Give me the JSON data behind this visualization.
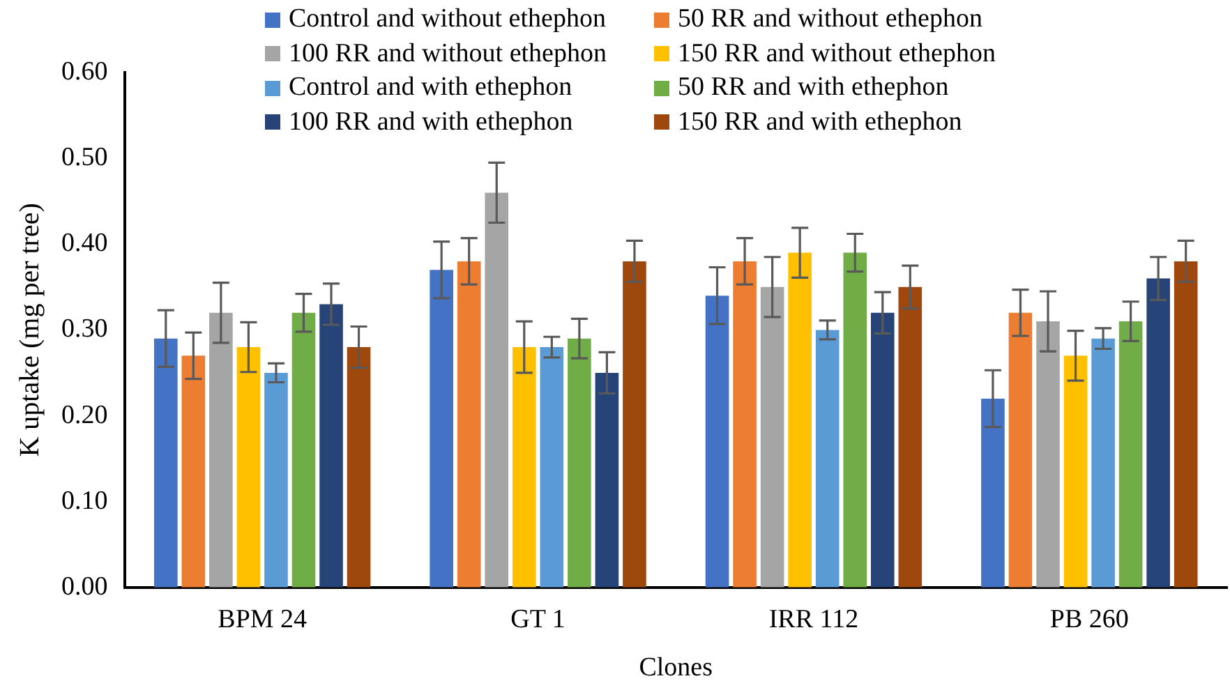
{
  "chart_data": {
    "type": "bar",
    "xlabel": "Clones",
    "ylabel": "K uptake (mg per tree)",
    "categories": [
      "BPM 24",
      "GT 1",
      "IRR 112",
      "PB 260"
    ],
    "ylim": [
      0,
      0.6
    ],
    "yticks": [
      {
        "value": 0,
        "label": "0.00"
      },
      {
        "value": 0.1,
        "label": "0.10"
      },
      {
        "value": 0.2,
        "label": "0.20"
      },
      {
        "value": 0.3,
        "label": "0.30"
      },
      {
        "value": 0.4,
        "label": "0.40"
      },
      {
        "value": 0.5,
        "label": "0.50"
      },
      {
        "value": 0.6,
        "label": "0.60"
      }
    ],
    "grid": false,
    "legend": "top right",
    "series": [
      {
        "name": "Control and without ethephon",
        "color": "#4472c4",
        "values": [
          0.29,
          0.37,
          0.34,
          0.22
        ],
        "errors": [
          0.033,
          0.033,
          0.033,
          0.033
        ]
      },
      {
        "name": "50 RR and without ethephon",
        "color": "#ed7d31",
        "values": [
          0.27,
          0.38,
          0.38,
          0.32
        ],
        "errors": [
          0.027,
          0.027,
          0.027,
          0.027
        ]
      },
      {
        "name": "100 RR and without ethephon",
        "color": "#a5a5a5",
        "values": [
          0.32,
          0.46,
          0.35,
          0.31
        ],
        "errors": [
          0.035,
          0.035,
          0.035,
          0.035
        ]
      },
      {
        "name": "150 RR and without ethephon",
        "color": "#ffc000",
        "values": [
          0.28,
          0.28,
          0.39,
          0.27
        ],
        "errors": [
          0.029,
          0.03,
          0.029,
          0.029
        ]
      },
      {
        "name": "Control and with ethephon",
        "color": "#5b9bd5",
        "values": [
          0.25,
          0.28,
          0.3,
          0.29
        ],
        "errors": [
          0.011,
          0.012,
          0.011,
          0.012
        ]
      },
      {
        "name": "50 RR and with ethephon",
        "color": "#70ad47",
        "values": [
          0.32,
          0.29,
          0.39,
          0.31
        ],
        "errors": [
          0.022,
          0.023,
          0.022,
          0.023
        ]
      },
      {
        "name": "100 RR and with ethephon",
        "color": "#264478",
        "values": [
          0.33,
          0.25,
          0.32,
          0.36
        ],
        "errors": [
          0.024,
          0.024,
          0.024,
          0.025
        ]
      },
      {
        "name": "150 RR and with ethephon",
        "color": "#9e480e",
        "values": [
          0.28,
          0.38,
          0.35,
          0.38
        ],
        "errors": [
          0.024,
          0.024,
          0.025,
          0.024
        ]
      }
    ]
  }
}
